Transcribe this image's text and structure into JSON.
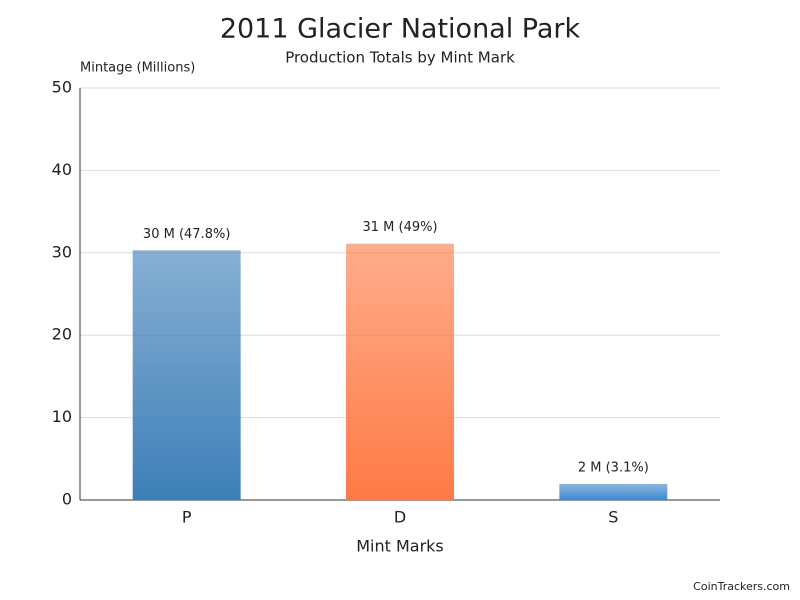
{
  "chart_data": {
    "type": "bar",
    "title": "2011 Glacier National Park",
    "subtitle": "Production Totals by Mint Mark",
    "y_axis_label": "Mintage (Millions)",
    "x_axis_label": "Mint Marks",
    "categories": [
      "P",
      "D",
      "S"
    ],
    "values": [
      30.3,
      31.1,
      1.95
    ],
    "value_labels": [
      "30 M (47.8%)",
      "31 M (49%)",
      "2 M (3.1%)"
    ],
    "colors": [
      "#3d7fb8",
      "#ff7a45",
      "#3d8ad0"
    ],
    "ylim": [
      0,
      50
    ],
    "yticks": [
      0,
      10,
      20,
      30,
      40,
      50
    ],
    "grid": true,
    "footer": "CoinTrackers.com"
  }
}
